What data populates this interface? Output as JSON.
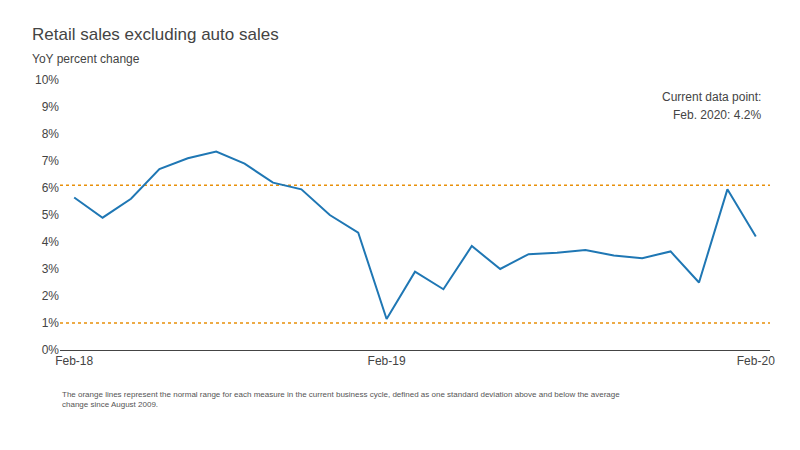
{
  "chart_data": {
    "type": "line",
    "title": "Retail sales excluding auto sales",
    "subtitle": "YoY percent change",
    "annotations": [
      "Current data point:",
      "Feb. 2020: 4.2%"
    ],
    "footer": "The orange lines represent the normal range for each measure in the current business cycle, defined as one standard deviation above and below the average\nchange since August 2009.",
    "categories": [
      "Feb-18",
      null,
      null,
      null,
      null,
      null,
      null,
      null,
      null,
      null,
      null,
      "Feb-19",
      null,
      null,
      null,
      null,
      null,
      null,
      null,
      null,
      null,
      null,
      null,
      null,
      "Feb-20"
    ],
    "values": [
      5.65,
      4.9,
      5.6,
      6.7,
      7.1,
      7.35,
      6.9,
      6.2,
      5.95,
      5.0,
      4.35,
      1.15,
      2.9,
      2.25,
      3.85,
      3.0,
      3.55,
      3.6,
      3.7,
      3.5,
      3.4,
      3.65,
      2.5,
      5.95,
      4.2
    ],
    "reference_lines": [
      {
        "value": 6.1,
        "color": "#e8900a",
        "line_style": "dotted"
      },
      {
        "value": 1.0,
        "color": "#e8900a",
        "line_style": "dotted"
      }
    ],
    "ylim": [
      0,
      10
    ],
    "yticks": [
      {
        "value": 0,
        "label": "0%"
      },
      {
        "value": 1,
        "label": "1%"
      },
      {
        "value": 2,
        "label": "2%"
      },
      {
        "value": 3,
        "label": "3%"
      },
      {
        "value": 4,
        "label": "4%"
      },
      {
        "value": 5,
        "label": "5%"
      },
      {
        "value": 6,
        "label": "6%"
      },
      {
        "value": 7,
        "label": "7%"
      },
      {
        "value": 8,
        "label": "8%"
      },
      {
        "value": 9,
        "label": "9%"
      },
      {
        "value": 10,
        "label": "10%"
      }
    ],
    "grid": false
  }
}
